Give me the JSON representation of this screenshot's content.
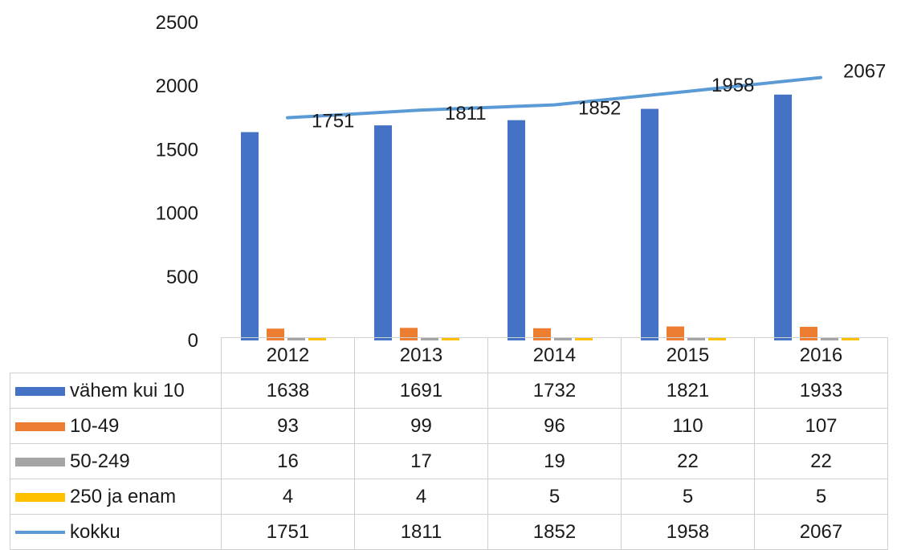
{
  "chart_data": {
    "type": "bar",
    "categories": [
      "2012",
      "2013",
      "2014",
      "2015",
      "2016"
    ],
    "ylim": [
      0,
      2500
    ],
    "yticks": [
      0,
      500,
      1000,
      1500,
      2000,
      2500
    ],
    "grid": false,
    "legend": "data-table",
    "series": [
      {
        "name": "vähem kui 10",
        "type": "bar",
        "color": "#4472C4",
        "values": [
          1638,
          1691,
          1732,
          1821,
          1933
        ]
      },
      {
        "name": "10-49",
        "type": "bar",
        "color": "#ED7D31",
        "values": [
          93,
          99,
          96,
          110,
          107
        ]
      },
      {
        "name": "50-249",
        "type": "bar",
        "color": "#A5A5A5",
        "values": [
          16,
          17,
          19,
          22,
          22
        ]
      },
      {
        "name": "250 ja enam",
        "type": "bar",
        "color": "#FFC000",
        "values": [
          4,
          4,
          5,
          5,
          5
        ]
      },
      {
        "name": "kokku",
        "type": "line",
        "color": "#5B9BD5",
        "values": [
          1751,
          1811,
          1852,
          1958,
          2067
        ],
        "data_labels": [
          "1751",
          "1811",
          "1852",
          "1958",
          "2067"
        ]
      }
    ]
  }
}
